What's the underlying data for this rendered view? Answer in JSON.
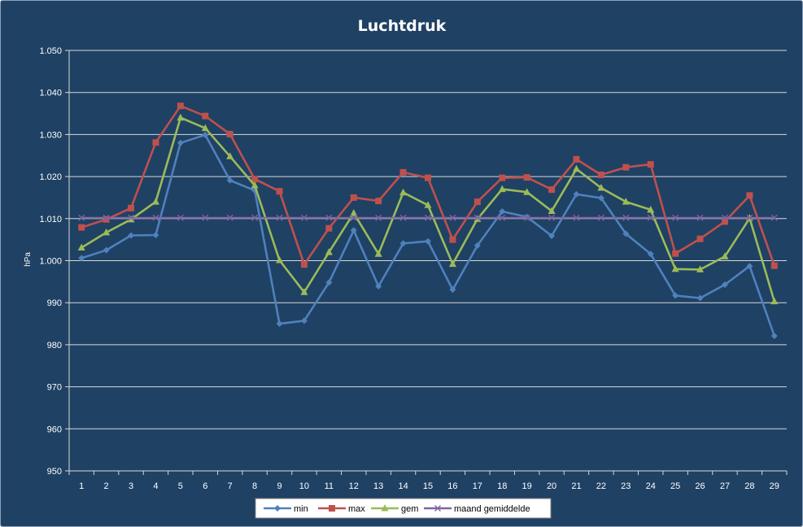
{
  "chart_data": {
    "type": "line",
    "title": "Luchtdruk",
    "xlabel": "",
    "ylabel": "hPa",
    "ylim": [
      950,
      1050
    ],
    "yticks": [
      "950",
      "960",
      "970",
      "980",
      "990",
      "1.000",
      "1.010",
      "1.020",
      "1.030",
      "1.040",
      "1.050"
    ],
    "categories": [
      "1",
      "2",
      "3",
      "4",
      "5",
      "6",
      "7",
      "8",
      "9",
      "10",
      "11",
      "12",
      "13",
      "14",
      "15",
      "16",
      "17",
      "18",
      "19",
      "20",
      "21",
      "22",
      "23",
      "24",
      "25",
      "26",
      "27",
      "28",
      "29"
    ],
    "grid": "horizontal",
    "legend_position": "bottom",
    "series": [
      {
        "name": "min",
        "color": "#4f81bd",
        "marker": "diamond",
        "values": [
          1000.6,
          1002.5,
          1006.0,
          1006.1,
          1028.0,
          1029.9,
          1019.1,
          1016.7,
          985.0,
          985.7,
          994.8,
          1007.2,
          993.9,
          1004.1,
          1004.6,
          993.1,
          1003.6,
          1011.7,
          1010.4,
          1005.9,
          1015.8,
          1014.9,
          1006.4,
          1001.6,
          991.7,
          991.1,
          994.3,
          998.7,
          982.1
        ]
      },
      {
        "name": "max",
        "color": "#c0504d",
        "marker": "square",
        "values": [
          1007.9,
          1009.8,
          1012.5,
          1028.1,
          1036.8,
          1034.4,
          1030.1,
          1019.4,
          1016.5,
          999.1,
          1007.7,
          1015.0,
          1014.2,
          1021.0,
          1019.7,
          1005.0,
          1014.0,
          1019.7,
          1019.8,
          1016.9,
          1024.1,
          1020.4,
          1022.2,
          1022.9,
          1001.7,
          1005.2,
          1009.3,
          1015.5,
          998.8
        ]
      },
      {
        "name": "gem",
        "color": "#9bbb59",
        "marker": "triangle",
        "values": [
          1003.1,
          1006.7,
          1009.8,
          1014.0,
          1034.0,
          1031.5,
          1024.8,
          1017.9,
          1000.1,
          992.5,
          1002.0,
          1011.3,
          1001.6,
          1016.2,
          1013.2,
          999.2,
          1009.9,
          1017.0,
          1016.3,
          1011.8,
          1021.8,
          1017.3,
          1014.0,
          1012.1,
          998.0,
          997.9,
          1001.0,
          1010.1,
          990.3
        ]
      },
      {
        "name": "maand gemiddelde",
        "color": "#8064a2",
        "marker": "x",
        "values": [
          1010.2,
          1010.2,
          1010.2,
          1010.2,
          1010.2,
          1010.2,
          1010.2,
          1010.2,
          1010.2,
          1010.2,
          1010.2,
          1010.2,
          1010.2,
          1010.2,
          1010.2,
          1010.2,
          1010.2,
          1010.2,
          1010.2,
          1010.2,
          1010.2,
          1010.2,
          1010.2,
          1010.2,
          1010.2,
          1010.2,
          1010.2,
          1010.2,
          1010.2
        ]
      }
    ]
  }
}
